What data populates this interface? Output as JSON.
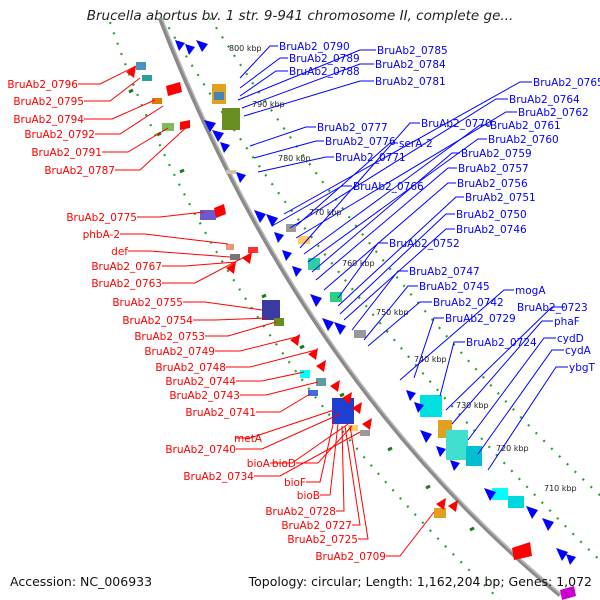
{
  "title": "Brucella abortus bv. 1 str. 9-941 chromosome II, complete ge...",
  "footer": {
    "accession": "Accession: NC_006933",
    "topology": "Topology: circular; Length: 1,162,204 bp; Genes: 1,072"
  },
  "scale_labels": [
    "800 kbp",
    "790 kbp",
    "780 kbp",
    "770 kbp",
    "760 kbp",
    "750 kbp",
    "740 kbp",
    "730 kbp",
    "720 kbp",
    "710 kbp"
  ],
  "colors": {
    "reverse_strand": "#ff0000",
    "forward_strand": "#0000ff",
    "backbone": "#888888",
    "ring_dots": "#2ca02c"
  },
  "left_labels": [
    "BruAb2_0796",
    "BruAb2_0795",
    "BruAb2_0794",
    "BruAb2_0792",
    "BruAb2_0791",
    "BruAb2_0787",
    "BruAb2_0775",
    "phbA-2",
    "def",
    "BruAb2_0767",
    "BruAb2_0763",
    "BruAb2_0755",
    "BruAb2_0754",
    "BruAb2_0753",
    "BruAb2_0749",
    "BruAb2_0748",
    "BruAb2_0744",
    "BruAb2_0743",
    "BruAb2_0741",
    "metA",
    "BruAb2_0740",
    "bioA",
    "bioD",
    "BruAb2_0734",
    "bioF",
    "bioB",
    "BruAb2_0728",
    "BruAb2_0727",
    "BruAb2_0725",
    "BruAb2_0709"
  ],
  "right_labels": [
    "BruAb2_0790",
    "BruAb2_0785",
    "BruAb2_0789",
    "BruAb2_0784",
    "BruAb2_0788",
    "BruAb2_0781",
    "BruAb2_0765",
    "BruAb2_0764",
    "BruAb2_0762",
    "BruAb2_0777",
    "BruAb2_0770",
    "BruAb2_0761",
    "BruAb2_0776",
    "serA-2",
    "BruAb2_0760",
    "BruAb2_0771",
    "BruAb2_0759",
    "BruAb2_0757",
    "BruAb2_0766",
    "BruAb2_0756",
    "BruAb2_0751",
    "BruAb2_0750",
    "BruAb2_0746",
    "BruAb2_0752",
    "BruAb2_0747",
    "BruAb2_0745",
    "mogA",
    "BruAb2_0742",
    "BruAb2_0723",
    "BruAb2_0729",
    "phaF",
    "BruAb2_0724",
    "cydD",
    "cydA",
    "ybgT"
  ]
}
